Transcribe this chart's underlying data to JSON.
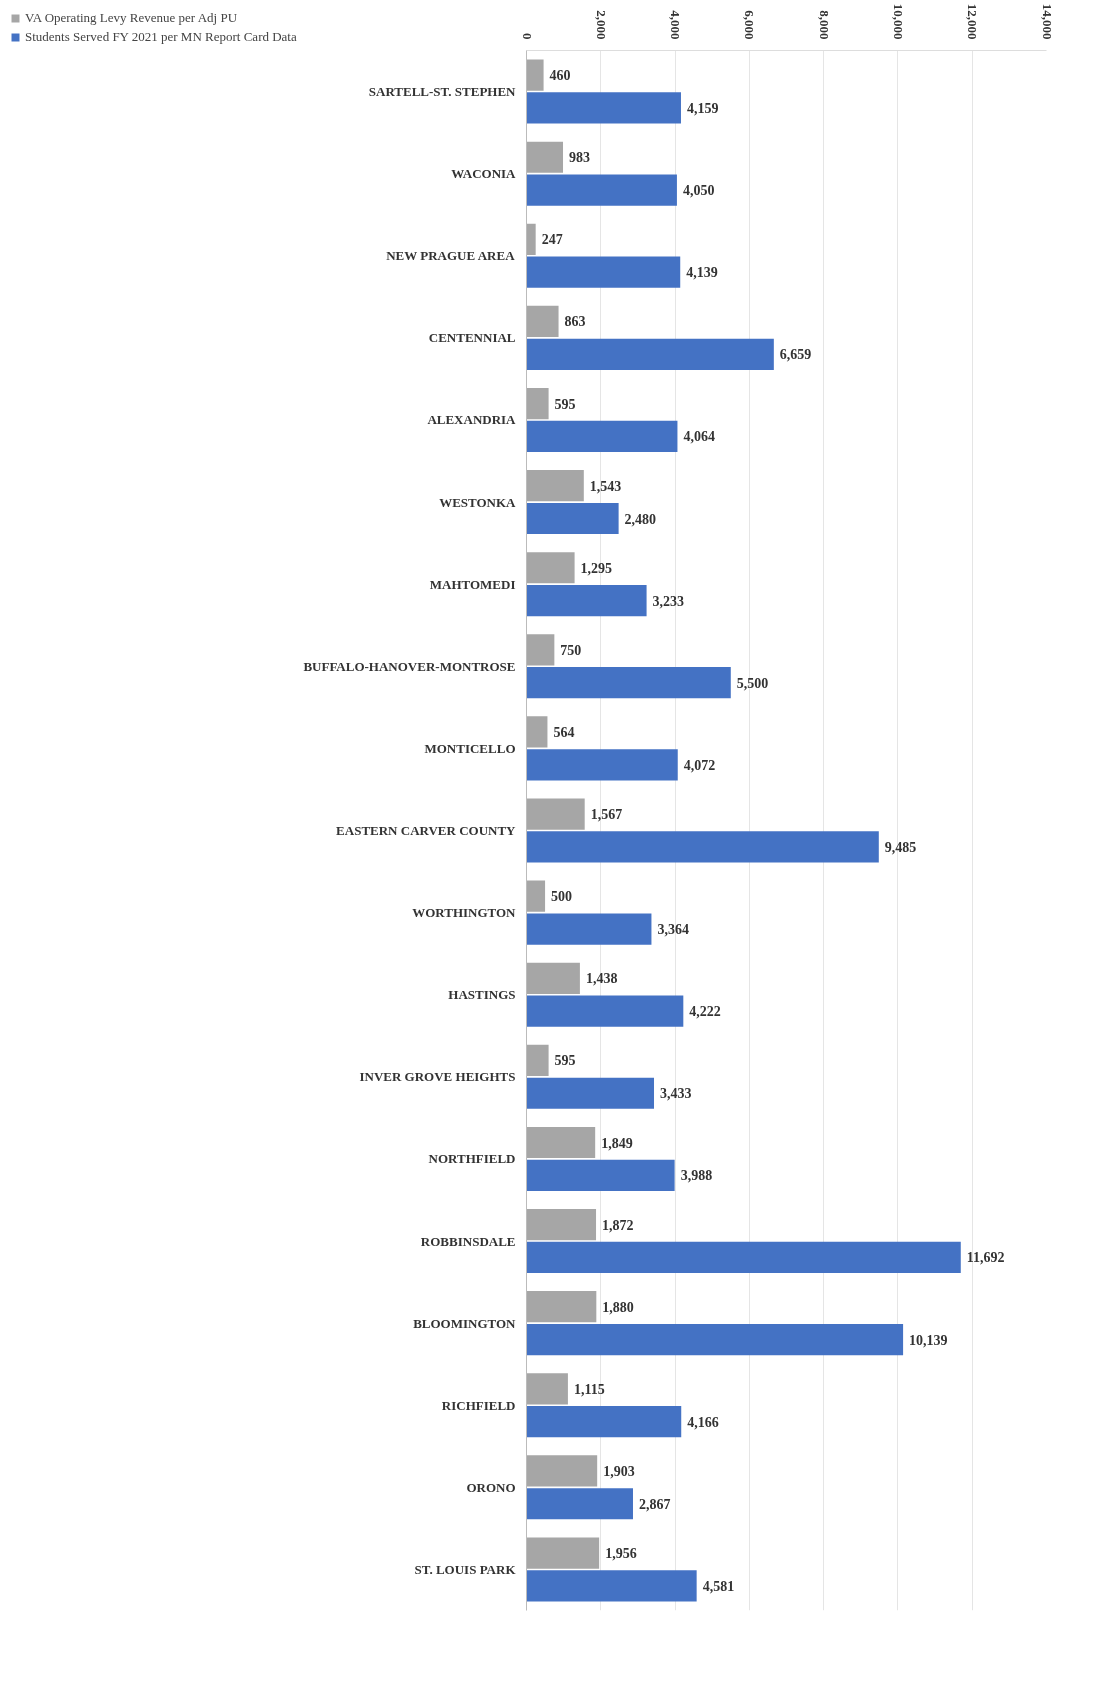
{
  "chart_data": {
    "type": "bar",
    "orientation": "horizontal",
    "categories": [
      "SARTELL-ST. STEPHEN",
      "WACONIA",
      "NEW PRAGUE AREA",
      "CENTENNIAL",
      "ALEXANDRIA",
      "WESTONKA",
      "MAHTOMEDI",
      "BUFFALO-HANOVER-MONTROSE",
      "MONTICELLO",
      "EASTERN CARVER COUNTY",
      "WORTHINGTON",
      "HASTINGS",
      "INVER GROVE HEIGHTS",
      "NORTHFIELD",
      "ROBBINSDALE",
      "BLOOMINGTON",
      "RICHFIELD",
      "ORONO",
      "ST. LOUIS PARK"
    ],
    "series": [
      {
        "name": "VA Operating Levy Revenue per Adj PU",
        "color": "#a6a6a6",
        "values": [
          460,
          983,
          247,
          863,
          595,
          1543,
          1295,
          750,
          564,
          1567,
          500,
          1438,
          595,
          1849,
          1872,
          1880,
          1115,
          1903,
          1956
        ],
        "value_labels": [
          "460",
          "983",
          "247",
          "863",
          "595",
          "1,543",
          "1,295",
          "750",
          "564",
          "1,567",
          "500",
          "1,438",
          "595",
          "1,849",
          "1,872",
          "1,880",
          "1,115",
          "1,903",
          "1,956"
        ]
      },
      {
        "name": "Students Served FY 2021 per MN Report Card Data",
        "color": "#4472c4",
        "values": [
          4159,
          4050,
          4139,
          6659,
          4064,
          2480,
          3233,
          5500,
          4072,
          9485,
          3364,
          4222,
          3433,
          3988,
          11692,
          10139,
          4166,
          2867,
          4581
        ],
        "value_labels": [
          "4,159",
          "4,050",
          "4,139",
          "6,659",
          "4,064",
          "2,480",
          "3,233",
          "5,500",
          "4,072",
          "9,485",
          "3,364",
          "4,222",
          "3,433",
          "3,988",
          "11,692",
          "10,139",
          "4,166",
          "2,867",
          "4,581"
        ]
      }
    ],
    "xlim": [
      0,
      14000
    ],
    "xticks": [
      0,
      {
        "value": 2000,
        "label": "2,000"
      },
      {
        "value": 4000,
        "label": "4,000"
      },
      {
        "value": 6000,
        "label": "6,000"
      },
      {
        "value": 8000,
        "label": "8,000"
      },
      {
        "value": 10000,
        "label": "10,000"
      },
      {
        "value": 12000,
        "label": "12,000"
      },
      {
        "value": 14000,
        "label": "14,000"
      }
    ],
    "grid": "x",
    "legend": "left"
  }
}
